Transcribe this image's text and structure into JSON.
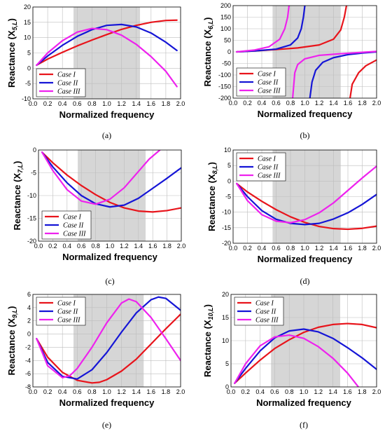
{
  "chart_data": [
    {
      "type": "line",
      "caption": "(a)",
      "ylabel_main": "Reactance (X",
      "ylabel_sub": "5,L",
      "ylabel_end": ")",
      "xlabel": "Normalized frequency",
      "xlim": [
        0,
        2
      ],
      "ylim": [
        -10,
        20
      ],
      "xticks": [
        0.0,
        0.2,
        0.4,
        0.6,
        0.8,
        1.0,
        1.2,
        1.4,
        1.6,
        1.8,
        2.0
      ],
      "yticks": [
        -10,
        -5,
        0,
        5,
        10,
        15,
        20
      ],
      "band": [
        0.55,
        1.45
      ],
      "legend_pos": "bottom-left",
      "series": [
        {
          "name": "Case I",
          "color": "#e8141b",
          "x": [
            0.05,
            0.2,
            0.4,
            0.6,
            0.8,
            1.0,
            1.2,
            1.4,
            1.6,
            1.8,
            1.95
          ],
          "y": [
            1,
            3,
            5.2,
            7.3,
            9.2,
            11,
            12.7,
            14,
            15,
            15.6,
            15.7
          ]
        },
        {
          "name": "Case II",
          "color": "#1515d6",
          "x": [
            0.05,
            0.2,
            0.4,
            0.6,
            0.8,
            1.0,
            1.2,
            1.4,
            1.6,
            1.8,
            1.95
          ],
          "y": [
            1,
            4,
            7.5,
            10.4,
            12.6,
            14,
            14.3,
            13.5,
            11.5,
            8.5,
            5.8
          ]
        },
        {
          "name": "Case III",
          "color": "#ee22ee",
          "x": [
            0.05,
            0.2,
            0.4,
            0.6,
            0.8,
            1.0,
            1.2,
            1.4,
            1.6,
            1.8,
            1.95
          ],
          "y": [
            1,
            5,
            9,
            11.8,
            13,
            12.6,
            10.8,
            7.8,
            3.8,
            -1,
            -6
          ]
        }
      ]
    },
    {
      "type": "line",
      "caption": "(b)",
      "ylabel_main": "Reactance (X",
      "ylabel_sub": "6,L",
      "ylabel_end": ")",
      "xlabel": "Normalized frequency",
      "xlim": [
        0,
        2
      ],
      "ylim": [
        -200,
        200
      ],
      "xticks": [
        0.0,
        0.2,
        0.4,
        0.6,
        0.8,
        1.0,
        1.2,
        1.4,
        1.6,
        1.8,
        2.0
      ],
      "yticks": [
        -200,
        -150,
        -100,
        -50,
        0,
        50,
        100,
        150,
        200
      ],
      "band": [
        0.55,
        1.5
      ],
      "legend_pos": "bottom-left",
      "series": [
        {
          "name": "Case I",
          "color": "#e8141b",
          "x": [
            0.05,
            0.3,
            0.6,
            0.9,
            1.2,
            1.4,
            1.5,
            1.55,
            1.58,
            null,
            1.63,
            1.66,
            1.75,
            1.85,
            2.0
          ],
          "y": [
            0,
            4,
            10,
            17,
            30,
            55,
            95,
            150,
            200,
            null,
            -200,
            -140,
            -90,
            -60,
            -35
          ]
        },
        {
          "name": "Case II",
          "color": "#1515d6",
          "x": [
            0.05,
            0.3,
            0.6,
            0.8,
            0.9,
            0.95,
            0.98,
            1.0,
            null,
            1.07,
            1.1,
            1.15,
            1.25,
            1.4,
            1.6,
            1.8,
            2.0
          ],
          "y": [
            0,
            4,
            12,
            30,
            60,
            100,
            150,
            200,
            null,
            -200,
            -130,
            -80,
            -45,
            -25,
            -12,
            -5,
            0
          ]
        },
        {
          "name": "Case III",
          "color": "#ee22ee",
          "x": [
            0.05,
            0.3,
            0.5,
            0.65,
            0.72,
            0.76,
            0.78,
            null,
            0.83,
            0.86,
            0.9,
            1.0,
            1.2,
            1.5,
            1.8,
            2.0
          ],
          "y": [
            0,
            8,
            22,
            55,
            100,
            150,
            200,
            null,
            -200,
            -90,
            -55,
            -30,
            -15,
            -8,
            -2,
            2
          ]
        }
      ]
    },
    {
      "type": "line",
      "caption": "(c)",
      "ylabel_main": "Reactance (X",
      "ylabel_sub": "7,L",
      "ylabel_end": ")",
      "xlabel": "Normalized frequency",
      "xlim": [
        0,
        2
      ],
      "ylim": [
        -20,
        0
      ],
      "xticks": [
        0.0,
        0.2,
        0.4,
        0.6,
        0.8,
        1.0,
        1.2,
        1.4,
        1.6,
        1.8,
        2.0
      ],
      "yticks": [
        -20,
        -15,
        -10,
        -5,
        0
      ],
      "band": [
        0.55,
        1.5
      ],
      "legend_pos": "bottom-left",
      "series": [
        {
          "name": "Case I",
          "color": "#e8141b",
          "x": [
            0.05,
            0.2,
            0.4,
            0.6,
            0.8,
            1.0,
            1.2,
            1.4,
            1.6,
            1.8,
            2.0
          ],
          "y": [
            -0.5,
            -2.8,
            -5.5,
            -7.8,
            -9.8,
            -11.5,
            -12.7,
            -13.4,
            -13.6,
            -13.3,
            -12.7
          ]
        },
        {
          "name": "Case II",
          "color": "#1515d6",
          "x": [
            0.05,
            0.2,
            0.4,
            0.6,
            0.8,
            1.0,
            1.2,
            1.4,
            1.6,
            1.8,
            2.0
          ],
          "y": [
            -0.5,
            -3.7,
            -7.2,
            -10,
            -11.8,
            -12.5,
            -12.1,
            -10.6,
            -8.4,
            -6.2,
            -3.9
          ]
        },
        {
          "name": "Case III",
          "color": "#ee22ee",
          "x": [
            0.05,
            0.2,
            0.4,
            0.6,
            0.8,
            1.0,
            1.2,
            1.4,
            1.55,
            1.7
          ],
          "y": [
            -0.5,
            -4.5,
            -8.7,
            -11.2,
            -11.9,
            -10.8,
            -8.3,
            -4.7,
            -2,
            0
          ]
        }
      ]
    },
    {
      "type": "line",
      "caption": "(d)",
      "ylabel_main": "Reactance (X",
      "ylabel_sub": "8,L",
      "ylabel_end": ")",
      "xlabel": "Normalized frequency",
      "xlim": [
        0,
        2
      ],
      "ylim": [
        -20,
        10
      ],
      "xticks": [
        0.0,
        0.2,
        0.4,
        0.6,
        0.8,
        1.0,
        1.2,
        1.4,
        1.6,
        1.8,
        2.0
      ],
      "yticks": [
        -20,
        -15,
        -10,
        -5,
        0,
        5,
        10
      ],
      "band": [
        0.55,
        1.5
      ],
      "legend_pos": "top-left",
      "series": [
        {
          "name": "Case I",
          "color": "#e8141b",
          "x": [
            0.05,
            0.2,
            0.4,
            0.6,
            0.8,
            1.0,
            1.2,
            1.4,
            1.6,
            1.8,
            2.0
          ],
          "y": [
            -0.8,
            -3.5,
            -6.5,
            -9.2,
            -11.5,
            -13.3,
            -14.6,
            -15.3,
            -15.5,
            -15.2,
            -14.5
          ]
        },
        {
          "name": "Case II",
          "color": "#1515d6",
          "x": [
            0.05,
            0.2,
            0.4,
            0.6,
            0.8,
            1.0,
            1.2,
            1.4,
            1.6,
            1.8,
            2.0
          ],
          "y": [
            -0.8,
            -5,
            -9.5,
            -12.3,
            -13.6,
            -14,
            -13.6,
            -12.2,
            -10.2,
            -7.5,
            -4.3
          ]
        },
        {
          "name": "Case III",
          "color": "#ee22ee",
          "x": [
            0.05,
            0.2,
            0.4,
            0.6,
            0.8,
            1.0,
            1.2,
            1.4,
            1.6,
            1.8,
            2.0
          ],
          "y": [
            -0.8,
            -6.3,
            -10.8,
            -12.9,
            -13.4,
            -12.4,
            -10.2,
            -7,
            -3,
            1,
            4.8
          ]
        }
      ]
    },
    {
      "type": "line",
      "caption": "(e)",
      "ylabel_main": "Reactance (X",
      "ylabel_sub": "9,L",
      "ylabel_end": ")",
      "xlabel": "Normalized frequency",
      "xlim": [
        0,
        2
      ],
      "ylim": [
        -8,
        6
      ],
      "xticks": [
        0.0,
        0.2,
        0.4,
        0.6,
        0.8,
        1.0,
        1.2,
        1.4,
        1.6,
        1.8,
        2.0
      ],
      "yticks": [
        -8,
        -6,
        -4,
        -2,
        0,
        2,
        4,
        6
      ],
      "band": [
        0.55,
        1.5
      ],
      "legend_pos": "top-left",
      "series": [
        {
          "name": "Case I",
          "color": "#e8141b",
          "x": [
            0.05,
            0.2,
            0.4,
            0.6,
            0.8,
            0.9,
            1.0,
            1.2,
            1.4,
            1.6,
            1.8,
            2.0
          ],
          "y": [
            -0.7,
            -3.5,
            -5.8,
            -7,
            -7.4,
            -7.3,
            -6.9,
            -5.6,
            -3.8,
            -1.5,
            0.8,
            3
          ]
        },
        {
          "name": "Case II",
          "color": "#1515d6",
          "x": [
            0.05,
            0.2,
            0.4,
            0.6,
            0.8,
            1.0,
            1.2,
            1.4,
            1.6,
            1.7,
            1.8,
            2.0
          ],
          "y": [
            -0.7,
            -4.3,
            -6.4,
            -6.8,
            -5.4,
            -2.8,
            0.3,
            3.2,
            5.2,
            5.6,
            5.4,
            3.6
          ]
        },
        {
          "name": "Case III",
          "color": "#ee22ee",
          "x": [
            0.05,
            0.2,
            0.4,
            0.5,
            0.6,
            0.8,
            1.0,
            1.2,
            1.3,
            1.4,
            1.6,
            1.8,
            2.0
          ],
          "y": [
            -0.7,
            -4.8,
            -6.6,
            -6.3,
            -5.2,
            -2,
            1.7,
            4.7,
            5.3,
            4.9,
            2.5,
            -0.7,
            -4
          ]
        }
      ]
    },
    {
      "type": "line",
      "caption": "(f)",
      "ylabel_main": "Reactance (X",
      "ylabel_sub": "10,L",
      "ylabel_end": ")",
      "xlabel": "Normalized frequency",
      "xlim": [
        0,
        2
      ],
      "ylim": [
        0,
        20
      ],
      "xticks": [
        0.0,
        0.2,
        0.4,
        0.6,
        0.8,
        1.0,
        1.2,
        1.4,
        1.6,
        1.8,
        2.0
      ],
      "yticks": [
        0,
        5,
        10,
        15,
        20
      ],
      "band": [
        0.55,
        1.5
      ],
      "legend_pos": "top-left",
      "series": [
        {
          "name": "Case I",
          "color": "#e8141b",
          "x": [
            0.05,
            0.2,
            0.4,
            0.6,
            0.8,
            1.0,
            1.2,
            1.4,
            1.6,
            1.8,
            2.0
          ],
          "y": [
            0.8,
            3,
            5.8,
            8.3,
            10.2,
            11.8,
            12.9,
            13.5,
            13.7,
            13.5,
            12.8
          ]
        },
        {
          "name": "Case II",
          "color": "#1515d6",
          "x": [
            0.05,
            0.2,
            0.4,
            0.6,
            0.8,
            1.0,
            1.2,
            1.4,
            1.6,
            1.8,
            2.0
          ],
          "y": [
            0.8,
            4,
            7.8,
            10.6,
            12.1,
            12.5,
            11.9,
            10.5,
            8.5,
            6.3,
            3.8
          ]
        },
        {
          "name": "Case III",
          "color": "#ee22ee",
          "x": [
            0.05,
            0.2,
            0.4,
            0.6,
            0.8,
            1.0,
            1.2,
            1.4,
            1.6,
            1.75
          ],
          "y": [
            0.8,
            5,
            8.9,
            10.8,
            11.2,
            10.5,
            8.7,
            6.2,
            3,
            0
          ]
        }
      ]
    }
  ]
}
